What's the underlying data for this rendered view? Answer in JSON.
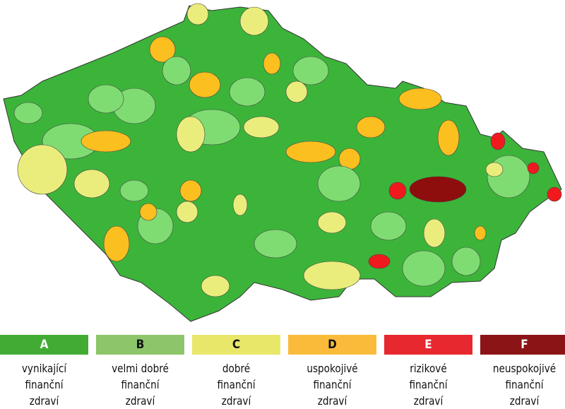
{
  "colors": {
    "A": "#41ab34",
    "B": "#8dc66a",
    "C": "#e9e76a",
    "D": "#fbbb3a",
    "E": "#e7282f",
    "F": "#8b1516",
    "map_A": "#3cb43a",
    "map_B": "#7fdc72",
    "map_C": "#eaed7c",
    "map_D": "#fbbf1f",
    "map_E": "#f0191e",
    "map_F": "#8e0d0d"
  },
  "legend": [
    {
      "grade": "A",
      "line1": "vynikající",
      "line2": "finanční",
      "line3": "zdraví"
    },
    {
      "grade": "B",
      "line1": "velmi dobré",
      "line2": "finanční",
      "line3": "zdraví"
    },
    {
      "grade": "C",
      "line1": "dobré",
      "line2": "finanční",
      "line3": "zdraví"
    },
    {
      "grade": "D",
      "line1": "uspokojivé",
      "line2": "finanční",
      "line3": "zdraví"
    },
    {
      "grade": "E",
      "line1": "rizikové",
      "line2": "finanční",
      "line3": "zdraví"
    },
    {
      "grade": "F",
      "line1": "neuspokojivé",
      "line2": "finanční",
      "line3": "zdraví"
    }
  ]
}
